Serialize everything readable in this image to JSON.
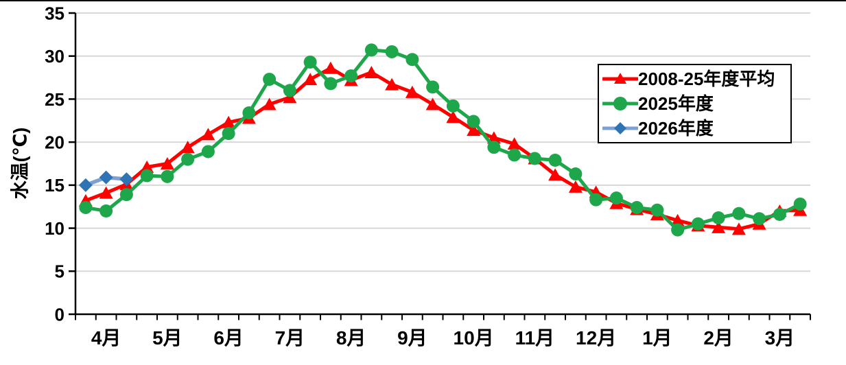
{
  "chart_data": {
    "type": "line",
    "title": "",
    "ylabel": "水温(℃)",
    "ylim": [
      0,
      35
    ],
    "y_tick_labels": [
      "0",
      "5",
      "10",
      "15",
      "20",
      "25",
      "30",
      "35"
    ],
    "x_months": [
      "4月",
      "5月",
      "6月",
      "7月",
      "8月",
      "9月",
      "10月",
      "11月",
      "12月",
      "1月",
      "2月",
      "3月"
    ],
    "x_points_per_month": 3,
    "grid": true,
    "legend_position": "top-right",
    "series": [
      {
        "key": "avg-2008-25",
        "name": "2008-25年度平均",
        "marker": "triangle",
        "color": "#FF0000",
        "line_color": "#FF0000",
        "values": [
          13.2,
          14.1,
          15.1,
          17.1,
          17.5,
          19.4,
          20.9,
          22.3,
          22.8,
          24.4,
          25.2,
          27.3,
          28.6,
          27.2,
          28.1,
          26.7,
          25.8,
          24.4,
          22.9,
          21.4,
          20.5,
          19.8,
          18.1,
          16.2,
          14.8,
          14.2,
          12.9,
          12.2,
          11.6,
          10.9,
          10.3,
          10.1,
          9.9,
          10.5,
          12.0,
          12.1
        ]
      },
      {
        "key": "fy2025",
        "name": "2025年度",
        "marker": "circle",
        "color": "#1EA64B",
        "line_color": "#1EA64B",
        "values": [
          12.4,
          12.0,
          13.9,
          16.1,
          16.0,
          18.0,
          18.9,
          21.0,
          23.4,
          27.3,
          26.0,
          29.3,
          26.8,
          27.7,
          30.7,
          30.5,
          29.6,
          26.4,
          24.2,
          22.4,
          19.4,
          18.5,
          18.1,
          17.9,
          16.3,
          13.3,
          13.5,
          12.4,
          12.1,
          9.8,
          10.5,
          11.2,
          11.7,
          11.1,
          11.6,
          12.8
        ]
      },
      {
        "key": "fy2026",
        "name": "2026年度",
        "marker": "diamond",
        "color": "#2E74B5",
        "line_color": "#7DA0D2",
        "values": [
          15.0,
          15.9,
          15.7
        ]
      }
    ]
  },
  "colors": {
    "background": "#FFFFFF",
    "grid": "#D8D8D8",
    "axis": "#000000",
    "legend_border": "#000000",
    "top_border": "#000000"
  }
}
